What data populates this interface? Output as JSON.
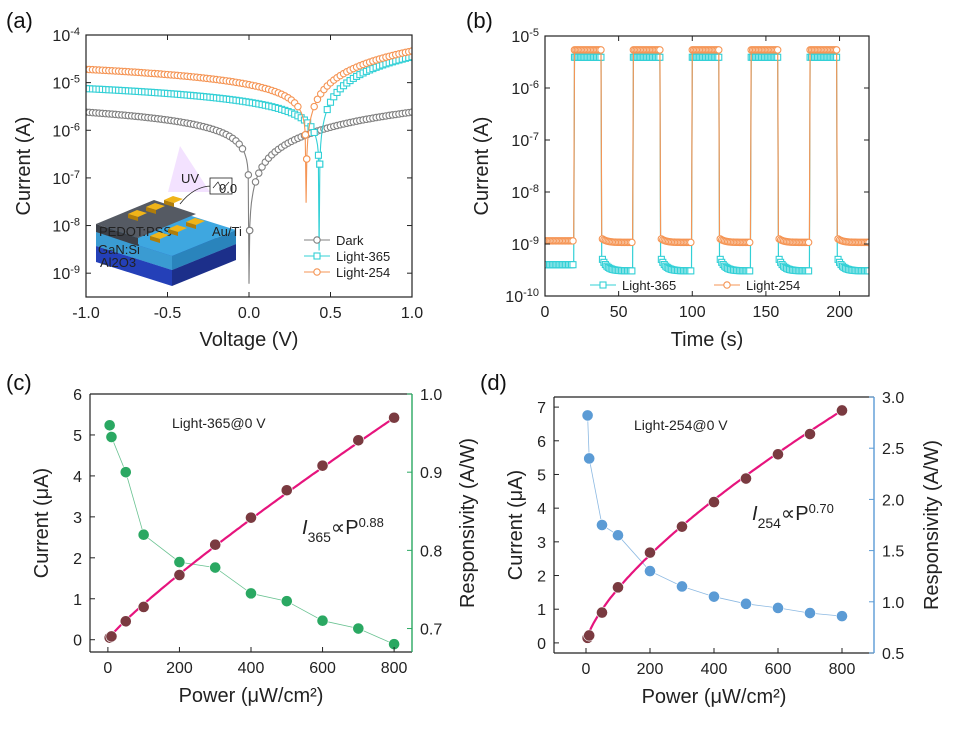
{
  "colors": {
    "dark": "#808080",
    "light365": "#33d0d6",
    "light254": "#f59555",
    "fitMagenta": "#e6147d",
    "currentMaroon": "#7a3a40",
    "respGreen": "#2aa862",
    "respBlue": "#5b9bd5",
    "axis": "#222222"
  },
  "chart_data": [
    {
      "id": "a",
      "panel_label": "(a)",
      "type": "line",
      "title": "",
      "xlabel": "Voltage (V)",
      "ylabel": "Current (A)",
      "yscale": "log",
      "xlim": [
        -1.0,
        1.0
      ],
      "ylim_exp": [
        -9.5,
        -4
      ],
      "x_ticks": [
        "-1.0",
        "-0.5",
        "0.0",
        "0.5",
        "1.0"
      ],
      "x_tick_values": [
        -1.0,
        -0.5,
        0.0,
        0.5,
        1.0
      ],
      "y_tick_exps": [
        -9,
        -8,
        -7,
        -6,
        -5,
        -4
      ],
      "legend_position": "bottom-right",
      "series": [
        {
          "name": "Dark",
          "v0": 0.0,
          "a_neg": 2.4e-06,
          "a_pos": 2.4e-06,
          "floor": 6e-10
        },
        {
          "name": "Light-365",
          "v0": 0.43,
          "a_neg": 7.5e-06,
          "a_pos": 3.5e-05,
          "floor": 3e-09
        },
        {
          "name": "Light-254",
          "v0": 0.35,
          "a_neg": 1.9e-05,
          "a_pos": 4.6e-05,
          "floor": 3e-08
        }
      ],
      "inset": {
        "uv_label": "UV",
        "layers": [
          "PEDOT:PSS",
          "GaN:Si",
          "Al2O3"
        ],
        "electrode_label": "Au/Ti",
        "meter_label": "0.0"
      }
    },
    {
      "id": "b",
      "panel_label": "(b)",
      "type": "line",
      "title": "",
      "xlabel": "Time (s)",
      "ylabel": "Current (A)",
      "yscale": "log",
      "xlim": [
        0,
        220
      ],
      "ylim_exp": [
        -10,
        -5
      ],
      "x_ticks": [
        "0",
        "50",
        "100",
        "150",
        "200"
      ],
      "x_tick_values": [
        0,
        50,
        100,
        150,
        200
      ],
      "y_tick_exps": [
        -10,
        -9,
        -8,
        -7,
        -6,
        -5
      ],
      "legend_position": "bottom-center",
      "on_intervals": [
        [
          20,
          38
        ],
        [
          60,
          78
        ],
        [
          100,
          118
        ],
        [
          140,
          158
        ],
        [
          180,
          198
        ]
      ],
      "series": [
        {
          "name": "Light-365",
          "on": 3.9e-06,
          "off": 4e-10
        },
        {
          "name": "Light-254",
          "on": 5.4e-06,
          "off": 1.15e-09
        }
      ]
    },
    {
      "id": "c",
      "panel_label": "(c)",
      "type": "scatter",
      "title": "",
      "annotation": "Light-365@0 V",
      "fit_label": {
        "I": "I",
        "sub": "365",
        "mid": "∝P",
        "sup": "0.88"
      },
      "xlabel": "Power (μW/cm²)",
      "ylabel": "Current (μA)",
      "y2label": "Responsivity (A/W)",
      "xlim": [
        -50,
        850
      ],
      "ylim": [
        -0.3,
        6
      ],
      "y2lim": [
        0.67,
        1.0
      ],
      "x_ticks": [
        "0",
        "200",
        "400",
        "600",
        "800"
      ],
      "x_tick_values": [
        0,
        200,
        400,
        600,
        800
      ],
      "y_ticks": [
        "0",
        "1",
        "2",
        "3",
        "4",
        "5",
        "6"
      ],
      "y_tick_values": [
        0,
        1,
        2,
        3,
        4,
        5,
        6
      ],
      "y2_ticks": [
        "0.7",
        "0.8",
        "0.9",
        "1.0"
      ],
      "y2_tick_values": [
        0.7,
        0.8,
        0.9,
        1.0
      ],
      "x": [
        5,
        10,
        50,
        100,
        200,
        300,
        400,
        500,
        600,
        700,
        800
      ],
      "current": [
        0.05,
        0.08,
        0.45,
        0.8,
        1.58,
        2.32,
        2.98,
        3.65,
        4.25,
        4.87,
        5.42
      ],
      "responsivity": [
        0.96,
        0.945,
        0.9,
        0.82,
        0.785,
        0.778,
        0.745,
        0.735,
        0.71,
        0.7,
        0.68
      ]
    },
    {
      "id": "d",
      "panel_label": "(d)",
      "type": "scatter",
      "title": "",
      "annotation": "Light-254@0 V",
      "fit_label": {
        "I": "I",
        "sub": "254",
        "mid": "∝P",
        "sup": "0.70"
      },
      "xlabel": "Power (μW/cm²)",
      "ylabel": "Current (μA)",
      "y2label": "Responsivity (A/W)",
      "xlim": [
        -100,
        900
      ],
      "ylim": [
        -0.3,
        7.3
      ],
      "y2lim": [
        0.5,
        3.0
      ],
      "x_ticks": [
        "0",
        "200",
        "400",
        "600",
        "800"
      ],
      "x_tick_values": [
        0,
        200,
        400,
        600,
        800
      ],
      "y_ticks": [
        "0",
        "1",
        "2",
        "3",
        "4",
        "5",
        "6",
        "7"
      ],
      "y_tick_values": [
        0,
        1,
        2,
        3,
        4,
        5,
        6,
        7
      ],
      "y2_ticks": [
        "0.5",
        "1.0",
        "1.5",
        "2.0",
        "2.5",
        "3.0"
      ],
      "y2_tick_values": [
        0.5,
        1.0,
        1.5,
        2.0,
        2.5,
        3.0
      ],
      "x": [
        5,
        10,
        50,
        100,
        200,
        300,
        400,
        500,
        600,
        700,
        800
      ],
      "current": [
        0.15,
        0.22,
        0.9,
        1.65,
        2.68,
        3.45,
        4.18,
        4.88,
        5.6,
        6.2,
        6.9
      ],
      "responsivity": [
        2.82,
        2.4,
        1.75,
        1.65,
        1.3,
        1.15,
        1.05,
        0.98,
        0.94,
        0.89,
        0.86
      ]
    }
  ]
}
